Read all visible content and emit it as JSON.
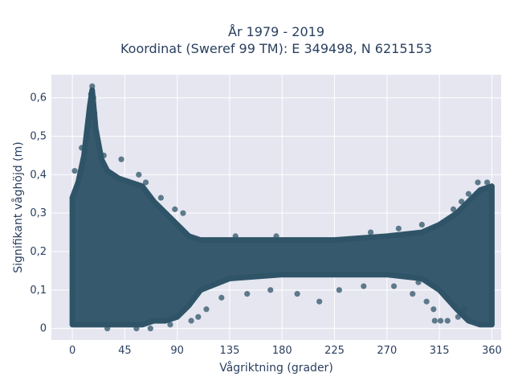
{
  "chart_data": {
    "type": "scatter",
    "title_line1": "År 1979 - 2019",
    "title_line2": "Koordinat (Sweref 99 TM): E 349498, N 6215153",
    "xlabel": "Vågriktning (grader)",
    "ylabel": "Signifikant våghöjd (m)",
    "xlim": [
      -18,
      368
    ],
    "ylim": [
      -0.03,
      0.66
    ],
    "xticks": [
      0,
      45,
      90,
      135,
      180,
      225,
      270,
      315,
      360
    ],
    "xtick_labels": [
      "0",
      "45",
      "90",
      "135",
      "180",
      "225",
      "270",
      "315",
      "360"
    ],
    "yticks": [
      0,
      0.1,
      0.2,
      0.3,
      0.4,
      0.5,
      0.6
    ],
    "ytick_labels": [
      "0",
      "0,1",
      "0,2",
      "0,3",
      "0,4",
      "0,5",
      "0,6"
    ],
    "grid": true,
    "marker_color": "#2f5468",
    "background_color": "#e5e6f0",
    "envelope": {
      "x": [
        0,
        5,
        10,
        15,
        17,
        20,
        25,
        30,
        40,
        50,
        60,
        70,
        80,
        90,
        100,
        110,
        135,
        180,
        225,
        270,
        300,
        315,
        330,
        340,
        350,
        360
      ],
      "y_upper": [
        0.34,
        0.38,
        0.45,
        0.58,
        0.62,
        0.52,
        0.44,
        0.41,
        0.39,
        0.38,
        0.37,
        0.33,
        0.3,
        0.27,
        0.24,
        0.23,
        0.23,
        0.23,
        0.23,
        0.24,
        0.25,
        0.27,
        0.3,
        0.33,
        0.36,
        0.37
      ],
      "y_lower": [
        0.01,
        0.01,
        0.01,
        0.01,
        0.01,
        0.01,
        0.01,
        0.01,
        0.01,
        0.01,
        0.01,
        0.02,
        0.02,
        0.03,
        0.06,
        0.1,
        0.13,
        0.14,
        0.14,
        0.14,
        0.13,
        0.1,
        0.05,
        0.02,
        0.01,
        0.01
      ]
    },
    "outliers": [
      {
        "x": 17,
        "y": 0.63
      },
      {
        "x": 16,
        "y": 0.61
      },
      {
        "x": 18,
        "y": 0.6
      },
      {
        "x": 15,
        "y": 0.57
      },
      {
        "x": 19,
        "y": 0.56
      },
      {
        "x": 14,
        "y": 0.53
      },
      {
        "x": 13,
        "y": 0.5
      },
      {
        "x": 21,
        "y": 0.5
      },
      {
        "x": 8,
        "y": 0.47
      },
      {
        "x": 27,
        "y": 0.45
      },
      {
        "x": 42,
        "y": 0.44
      },
      {
        "x": 2,
        "y": 0.41
      },
      {
        "x": 57,
        "y": 0.4
      },
      {
        "x": 63,
        "y": 0.38
      },
      {
        "x": 76,
        "y": 0.34
      },
      {
        "x": 88,
        "y": 0.31
      },
      {
        "x": 95,
        "y": 0.3
      },
      {
        "x": 327,
        "y": 0.31
      },
      {
        "x": 340,
        "y": 0.35
      },
      {
        "x": 348,
        "y": 0.38
      },
      {
        "x": 356,
        "y": 0.38
      },
      {
        "x": 334,
        "y": 0.33
      },
      {
        "x": 280,
        "y": 0.26
      },
      {
        "x": 256,
        "y": 0.25
      },
      {
        "x": 300,
        "y": 0.27
      },
      {
        "x": 140,
        "y": 0.24
      },
      {
        "x": 175,
        "y": 0.24
      },
      {
        "x": 102,
        "y": 0.02
      },
      {
        "x": 108,
        "y": 0.03
      },
      {
        "x": 115,
        "y": 0.05
      },
      {
        "x": 128,
        "y": 0.08
      },
      {
        "x": 150,
        "y": 0.09
      },
      {
        "x": 170,
        "y": 0.1
      },
      {
        "x": 193,
        "y": 0.09
      },
      {
        "x": 212,
        "y": 0.07
      },
      {
        "x": 229,
        "y": 0.1
      },
      {
        "x": 250,
        "y": 0.11
      },
      {
        "x": 276,
        "y": 0.11
      },
      {
        "x": 292,
        "y": 0.09
      },
      {
        "x": 297,
        "y": 0.12
      },
      {
        "x": 304,
        "y": 0.07
      },
      {
        "x": 310,
        "y": 0.05
      },
      {
        "x": 311,
        "y": 0.02
      },
      {
        "x": 316,
        "y": 0.02
      },
      {
        "x": 322,
        "y": 0.02
      },
      {
        "x": 327,
        "y": 0.06
      },
      {
        "x": 331,
        "y": 0.03
      },
      {
        "x": 336,
        "y": 0.05
      },
      {
        "x": 30,
        "y": 0.0
      },
      {
        "x": 55,
        "y": 0.0
      },
      {
        "x": 67,
        "y": 0.0
      },
      {
        "x": 84,
        "y": 0.01
      }
    ]
  }
}
